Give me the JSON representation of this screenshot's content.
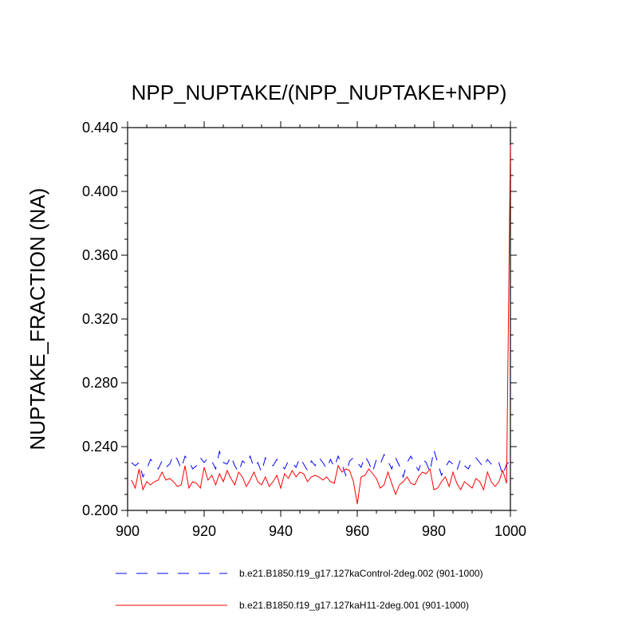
{
  "chart_data": {
    "type": "line",
    "title": "NPP_NUPTAKE/(NPP_NUPTAKE+NPP)",
    "xlabel": "",
    "ylabel": "NUPTAKE_FRACTION  (NA)",
    "xlim": [
      900,
      1000
    ],
    "ylim": [
      0.2,
      0.44
    ],
    "x_ticks": [
      900,
      920,
      940,
      960,
      980,
      1000
    ],
    "x_tick_labels": [
      "900",
      "920",
      "940",
      "960",
      "980",
      "1000"
    ],
    "y_ticks": [
      0.2,
      0.24,
      0.28,
      0.32,
      0.36,
      0.4,
      0.44
    ],
    "y_tick_labels": [
      "0.200",
      "0.240",
      "0.280",
      "0.320",
      "0.360",
      "0.400",
      "0.440"
    ],
    "grid": false,
    "legend_position": "bottom",
    "x": [
      901,
      902,
      903,
      904,
      905,
      906,
      907,
      908,
      909,
      910,
      911,
      912,
      913,
      914,
      915,
      916,
      917,
      918,
      919,
      920,
      921,
      922,
      923,
      924,
      925,
      926,
      927,
      928,
      929,
      930,
      931,
      932,
      933,
      934,
      935,
      936,
      937,
      938,
      939,
      940,
      941,
      942,
      943,
      944,
      945,
      946,
      947,
      948,
      949,
      950,
      951,
      952,
      953,
      954,
      955,
      956,
      957,
      958,
      959,
      960,
      961,
      962,
      963,
      964,
      965,
      966,
      967,
      968,
      969,
      970,
      971,
      972,
      973,
      974,
      975,
      976,
      977,
      978,
      979,
      980,
      981,
      982,
      983,
      984,
      985,
      986,
      987,
      988,
      989,
      990,
      991,
      992,
      993,
      994,
      995,
      996,
      997,
      998,
      999,
      1000
    ],
    "series": [
      {
        "name": "b.e21.B1850.f19_g17.127kaControl-2deg.002 (901-1000)",
        "color": "#0000ff",
        "dash": "dashed",
        "values": [
          0.23,
          0.228,
          0.23,
          0.221,
          0.226,
          0.232,
          0.229,
          0.226,
          0.231,
          0.227,
          0.229,
          0.235,
          0.232,
          0.226,
          0.234,
          0.231,
          0.226,
          0.228,
          0.233,
          0.23,
          0.233,
          0.231,
          0.226,
          0.237,
          0.23,
          0.229,
          0.234,
          0.228,
          0.224,
          0.231,
          0.229,
          0.234,
          0.227,
          0.23,
          0.224,
          0.233,
          0.23,
          0.228,
          0.232,
          0.229,
          0.226,
          0.231,
          0.23,
          0.227,
          0.233,
          0.229,
          0.225,
          0.231,
          0.228,
          0.233,
          0.23,
          0.226,
          0.232,
          0.227,
          0.234,
          0.229,
          0.222,
          0.231,
          0.233,
          0.23,
          0.227,
          0.234,
          0.23,
          0.224,
          0.232,
          0.229,
          0.235,
          0.231,
          0.226,
          0.233,
          0.228,
          0.221,
          0.23,
          0.234,
          0.229,
          0.225,
          0.232,
          0.23,
          0.224,
          0.238,
          0.23,
          0.222,
          0.227,
          0.231,
          0.229,
          0.225,
          0.232,
          0.228,
          0.226,
          0.231,
          0.233,
          0.23,
          0.227,
          0.232,
          0.229,
          0.228,
          0.23,
          0.222,
          0.229,
          0.231
        ]
      },
      {
        "name": "b.e21.B1850.f19_g17.127kaH11-2deg.001 (901-1000)",
        "color": "#ff0000",
        "dash": "solid",
        "values": [
          0.219,
          0.214,
          0.226,
          0.213,
          0.218,
          0.216,
          0.218,
          0.219,
          0.224,
          0.219,
          0.22,
          0.218,
          0.215,
          0.216,
          0.228,
          0.214,
          0.218,
          0.217,
          0.214,
          0.227,
          0.219,
          0.222,
          0.216,
          0.223,
          0.218,
          0.225,
          0.22,
          0.216,
          0.224,
          0.221,
          0.215,
          0.219,
          0.224,
          0.218,
          0.216,
          0.221,
          0.215,
          0.218,
          0.222,
          0.214,
          0.223,
          0.22,
          0.225,
          0.221,
          0.224,
          0.223,
          0.218,
          0.221,
          0.222,
          0.221,
          0.219,
          0.221,
          0.218,
          0.217,
          0.228,
          0.224,
          0.226,
          0.225,
          0.218,
          0.204,
          0.221,
          0.222,
          0.226,
          0.223,
          0.22,
          0.214,
          0.216,
          0.224,
          0.217,
          0.21,
          0.216,
          0.218,
          0.221,
          0.217,
          0.216,
          0.221,
          0.224,
          0.223,
          0.226,
          0.213,
          0.214,
          0.218,
          0.221,
          0.215,
          0.224,
          0.217,
          0.213,
          0.218,
          0.216,
          0.214,
          0.22,
          0.218,
          0.213,
          0.224,
          0.218,
          0.215,
          0.218,
          0.225,
          0.217,
          0.429
        ]
      }
    ]
  }
}
